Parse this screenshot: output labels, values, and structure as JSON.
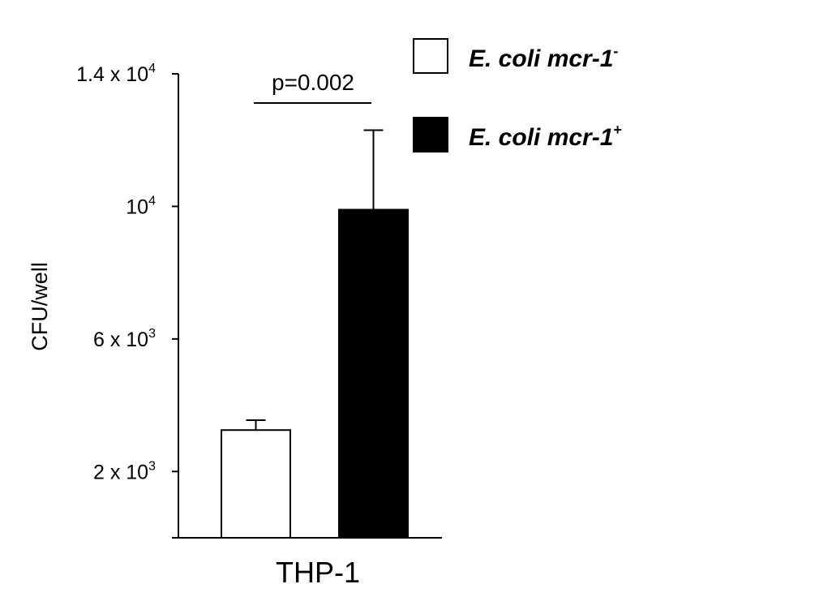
{
  "chart_data": {
    "type": "bar",
    "categories": [
      "THP-1"
    ],
    "series": [
      {
        "name": "E. coli mcr-1-",
        "label_main": "E. coli mcr-1",
        "label_sup": "-",
        "values": [
          3250
        ],
        "error": [
          300
        ],
        "fill": "#ffffff"
      },
      {
        "name": "E. coli mcr-1+",
        "label_main": "E. coli mcr-1",
        "label_sup": "+",
        "values": [
          9900
        ],
        "error": [
          2400
        ],
        "fill": "#000000"
      }
    ],
    "ylabel": "CFU/well",
    "xlabel": "",
    "ylim": [
      0,
      14000
    ],
    "yticks": [
      {
        "value": 2000,
        "base": "2 x 10",
        "exp": "3"
      },
      {
        "value": 6000,
        "base": "6 x 10",
        "exp": "3"
      },
      {
        "value": 10000,
        "base": "10",
        "exp": "4"
      },
      {
        "value": 14000,
        "base": "1.4 x 10",
        "exp": "4"
      }
    ],
    "annotation": {
      "text": "p=0.002"
    },
    "legend_position": "top-right",
    "grid": false
  }
}
